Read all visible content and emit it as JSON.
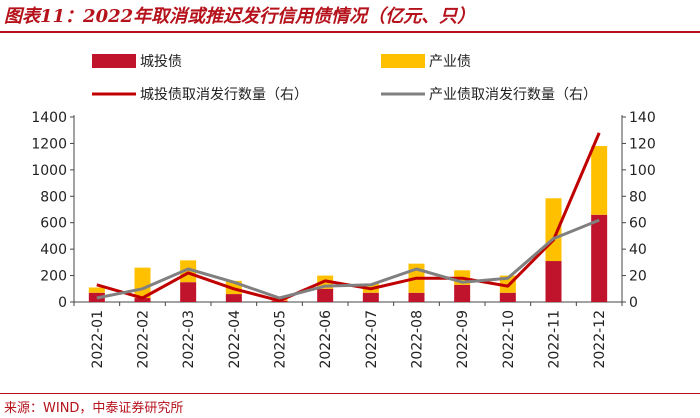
{
  "title": "图表11：2022年取消或推迟发行信用债情况（亿元、只）",
  "source": "来源：WIND，中泰证券研究所",
  "colors": {
    "accent": "#b5121b",
    "bar_chengtou": "#c0142c",
    "bar_chanye": "#ffc000",
    "line_chengtou": "#c00000",
    "line_chanye": "#808080"
  },
  "chart_data": {
    "type": "bar",
    "categories": [
      "2022-01",
      "2022-02",
      "2022-03",
      "2022-04",
      "2022-05",
      "2022-06",
      "2022-07",
      "2022-08",
      "2022-09",
      "2022-10",
      "2022-11",
      "2022-12"
    ],
    "series": [
      {
        "name": "城投债",
        "kind": "bar",
        "axis": "left",
        "stack": "a",
        "values": [
          70,
          30,
          150,
          60,
          10,
          100,
          70,
          70,
          130,
          70,
          310,
          660
        ]
      },
      {
        "name": "产业债",
        "kind": "bar",
        "axis": "left",
        "stack": "a",
        "values": [
          40,
          230,
          165,
          100,
          20,
          100,
          70,
          220,
          110,
          130,
          475,
          520
        ]
      },
      {
        "name": "城投债取消发行数量（右）",
        "kind": "line",
        "axis": "right",
        "values": [
          13,
          3,
          22,
          10,
          1,
          16,
          10,
          18,
          18,
          12,
          47,
          128
        ]
      },
      {
        "name": "产业债取消发行数量（右）",
        "kind": "line",
        "axis": "right",
        "values": [
          3,
          10,
          25,
          15,
          3,
          12,
          13,
          25,
          15,
          18,
          48,
          62
        ]
      }
    ],
    "yleft": {
      "lim": [
        0,
        1400
      ],
      "ticks": [
        0,
        200,
        400,
        600,
        800,
        1000,
        1200,
        1400
      ]
    },
    "yright": {
      "lim": [
        0,
        140
      ],
      "ticks": [
        0,
        20,
        40,
        60,
        80,
        100,
        120,
        140
      ]
    },
    "legend": [
      "城投债",
      "产业债",
      "城投债取消发行数量（右）",
      "产业债取消发行数量（右）"
    ],
    "legend_position": "top"
  }
}
